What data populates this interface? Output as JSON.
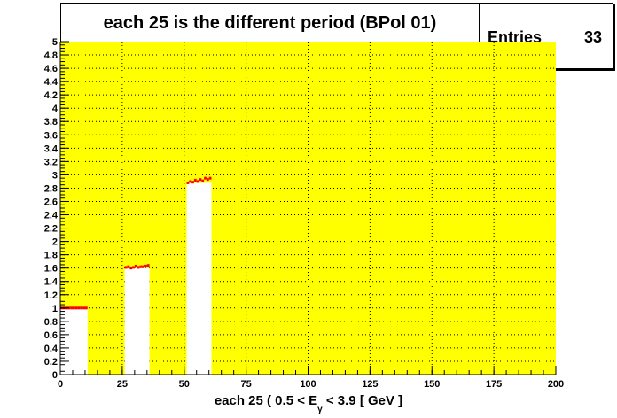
{
  "chart_data": {
    "type": "bar",
    "title": "each 25 is the different period (BPol 01)",
    "xlabel_parts": [
      "each 25 ( 0.5 < E",
      "γ",
      " < 3.9 [ GeV ]"
    ],
    "ylabel": "",
    "xlim": [
      0,
      200
    ],
    "ylim": [
      0,
      5
    ],
    "x_ticks": [
      0,
      25,
      50,
      75,
      100,
      125,
      150,
      175,
      200
    ],
    "y_ticks": [
      0,
      0.2,
      0.4,
      0.6,
      0.8,
      1,
      1.2,
      1.4,
      1.6,
      1.8,
      2,
      2.2,
      2.4,
      2.6,
      2.8,
      3,
      3.2,
      3.4,
      3.6,
      3.8,
      4,
      4.2,
      4.4,
      4.6,
      4.8,
      5
    ],
    "grid": true,
    "background_color": "#ffff00",
    "bar_color": "#ffffff",
    "error_color": "#ff0000",
    "bars": [
      {
        "x0": 0,
        "x1": 11,
        "points": [
          1.0,
          1.0,
          1.0,
          1.0,
          1.0,
          1.0,
          1.0,
          1.0,
          1.0,
          1.0,
          1.0
        ]
      },
      {
        "x0": 26,
        "x1": 36,
        "points": [
          1.61,
          1.62,
          1.6,
          1.61,
          1.63,
          1.61,
          1.62,
          1.62,
          1.63,
          1.64
        ]
      },
      {
        "x0": 51,
        "x1": 61,
        "points": [
          2.88,
          2.9,
          2.89,
          2.92,
          2.9,
          2.93,
          2.91,
          2.95,
          2.93,
          2.95
        ]
      }
    ]
  },
  "stats": {
    "label": "Entries",
    "value": "33"
  }
}
